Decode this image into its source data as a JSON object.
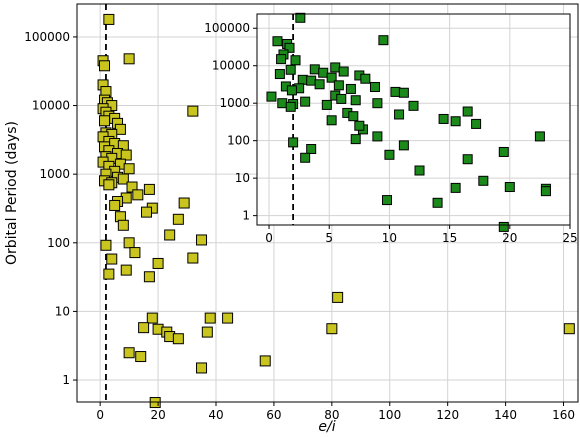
{
  "chart_data": [
    {
      "type": "scatter",
      "panel": "main",
      "xlabel": "e/i",
      "ylabel": "Orbital Period (days)",
      "xlim": [
        -8,
        165
      ],
      "ylim_log10": [
        -0.32,
        5.48
      ],
      "y_scale": "log",
      "x_ticks": [
        0,
        20,
        40,
        60,
        80,
        100,
        120,
        140,
        160
      ],
      "y_ticks": [
        1,
        10,
        100,
        1000,
        10000,
        100000
      ],
      "y_tick_labels": [
        "1",
        "10",
        "100",
        "1000",
        "10000",
        "100000"
      ],
      "grid": true,
      "marker_color": "#c9c41e",
      "vline_x": 2,
      "points": [
        [
          3,
          180000
        ],
        [
          1,
          45000
        ],
        [
          10,
          48000
        ],
        [
          1.5,
          38000
        ],
        [
          1,
          20000
        ],
        [
          2,
          16000
        ],
        [
          1.5,
          12000
        ],
        [
          2.5,
          11000
        ],
        [
          4,
          10000
        ],
        [
          1,
          9000
        ],
        [
          2,
          8000
        ],
        [
          3,
          7000
        ],
        [
          5,
          6500
        ],
        [
          1.5,
          6000
        ],
        [
          6,
          5500
        ],
        [
          7,
          4500
        ],
        [
          2,
          4000
        ],
        [
          4,
          3800
        ],
        [
          1,
          3500
        ],
        [
          3,
          3000
        ],
        [
          5,
          2800
        ],
        [
          8,
          2600
        ],
        [
          1.5,
          2500
        ],
        [
          3,
          2200
        ],
        [
          6,
          2000
        ],
        [
          9,
          1900
        ],
        [
          2,
          1800
        ],
        [
          4,
          1700
        ],
        [
          1,
          1500
        ],
        [
          7,
          1400
        ],
        [
          3,
          1300
        ],
        [
          10,
          1200
        ],
        [
          5,
          1100
        ],
        [
          2,
          1000
        ],
        [
          6,
          900
        ],
        [
          8,
          850
        ],
        [
          1.5,
          800
        ],
        [
          4,
          750
        ],
        [
          3,
          700
        ],
        [
          11,
          650
        ],
        [
          17,
          600
        ],
        [
          13,
          500
        ],
        [
          9,
          450
        ],
        [
          6,
          400
        ],
        [
          29,
          380
        ],
        [
          5,
          350
        ],
        [
          18,
          320
        ],
        [
          16,
          280
        ],
        [
          7,
          240
        ],
        [
          27,
          220
        ],
        [
          8,
          180
        ],
        [
          24,
          130
        ],
        [
          35,
          110
        ],
        [
          10,
          100
        ],
        [
          2,
          92
        ],
        [
          12,
          72
        ],
        [
          32,
          60
        ],
        [
          4,
          58
        ],
        [
          20,
          50
        ],
        [
          9,
          40
        ],
        [
          3,
          35
        ],
        [
          17,
          32
        ],
        [
          32,
          8300
        ],
        [
          18,
          8
        ],
        [
          38,
          8
        ],
        [
          44,
          8
        ],
        [
          82,
          16
        ],
        [
          15,
          5.8
        ],
        [
          20,
          5.5
        ],
        [
          80,
          5.6
        ],
        [
          162,
          5.6
        ],
        [
          23,
          5
        ],
        [
          37,
          5
        ],
        [
          24,
          4.3
        ],
        [
          27,
          4
        ],
        [
          10,
          2.5
        ],
        [
          14,
          2.2
        ],
        [
          57,
          1.9
        ],
        [
          35,
          1.5
        ],
        [
          19,
          0.47
        ]
      ]
    },
    {
      "type": "scatter",
      "panel": "inset",
      "xlim": [
        -1,
        25
      ],
      "ylim_log10": [
        -0.25,
        5.38
      ],
      "y_scale": "log",
      "x_ticks": [
        0,
        5,
        10,
        15,
        20,
        25
      ],
      "y_ticks": [
        1,
        10,
        100,
        1000,
        10000,
        100000
      ],
      "y_tick_labels": [
        "1",
        "10",
        "100",
        "1000",
        "10000",
        "100000"
      ],
      "grid": true,
      "marker_color": "#1b8a1b",
      "vline_x": 2,
      "points": [
        [
          2.6,
          190000
        ],
        [
          0.7,
          45000
        ],
        [
          9.5,
          48000
        ],
        [
          1.5,
          38000
        ],
        [
          1.7,
          30000
        ],
        [
          1.2,
          20000
        ],
        [
          1,
          15000
        ],
        [
          2.2,
          14000
        ],
        [
          5.5,
          9000
        ],
        [
          3.8,
          8000
        ],
        [
          1.8,
          7800
        ],
        [
          6.2,
          7000
        ],
        [
          4.5,
          6500
        ],
        [
          0.9,
          6000
        ],
        [
          7.5,
          5500
        ],
        [
          5.2,
          4800
        ],
        [
          8,
          4500
        ],
        [
          2.8,
          4200
        ],
        [
          3.5,
          4000
        ],
        [
          4.2,
          3200
        ],
        [
          5.8,
          3000
        ],
        [
          1.4,
          2800
        ],
        [
          8.8,
          2700
        ],
        [
          2.5,
          2500
        ],
        [
          6.8,
          2400
        ],
        [
          1.9,
          2200
        ],
        [
          10.5,
          2000
        ],
        [
          11.2,
          1900
        ],
        [
          0.2,
          1500
        ],
        [
          5.5,
          1600
        ],
        [
          7.2,
          1200
        ],
        [
          3,
          1100
        ],
        [
          6,
          1300
        ],
        [
          1.1,
          1000
        ],
        [
          2,
          950
        ],
        [
          4.8,
          900
        ],
        [
          9,
          1000
        ],
        [
          12,
          850
        ],
        [
          1.8,
          800
        ],
        [
          10.8,
          500
        ],
        [
          6.5,
          550
        ],
        [
          14.5,
          380
        ],
        [
          5.2,
          350
        ],
        [
          7,
          450
        ],
        [
          15.5,
          330
        ],
        [
          16.5,
          600
        ],
        [
          17.2,
          280
        ],
        [
          7.8,
          200
        ],
        [
          7.5,
          250
        ],
        [
          9,
          130
        ],
        [
          22.5,
          130
        ],
        [
          3.5,
          60
        ],
        [
          2,
          90
        ],
        [
          7.2,
          110
        ],
        [
          3,
          35
        ],
        [
          10,
          42
        ],
        [
          11.2,
          75
        ],
        [
          16.5,
          32
        ],
        [
          19.5,
          50
        ],
        [
          12.5,
          16
        ],
        [
          15.5,
          5.5
        ],
        [
          17.8,
          8.5
        ],
        [
          20,
          5.8
        ],
        [
          23,
          5.2
        ],
        [
          23,
          4.5
        ],
        [
          9.8,
          2.6
        ],
        [
          14,
          2.2
        ],
        [
          19.5,
          0.5
        ]
      ]
    }
  ]
}
